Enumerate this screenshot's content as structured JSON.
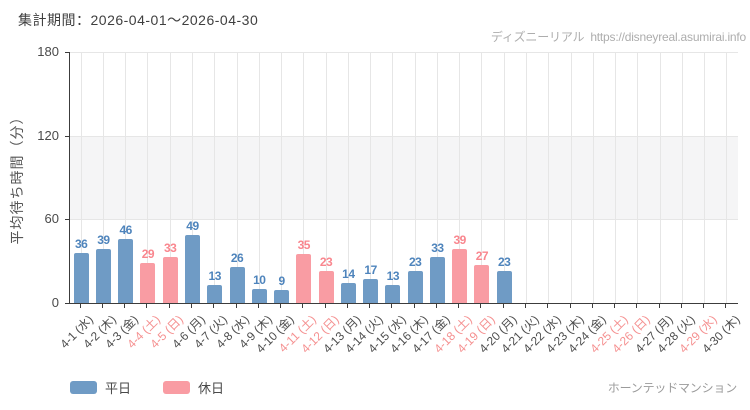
{
  "header": {
    "period_label": "集計期間：2026-04-01～2026-04-30",
    "watermark": {
      "site_name": "ディズニーリアル",
      "url": "https://disneyreal.asumirai.info"
    }
  },
  "footer": {
    "attraction_name": "ホーンテッドマンション"
  },
  "legend": {
    "items": [
      {
        "id": "weekday",
        "label": "平日",
        "color": "#6f9bc5"
      },
      {
        "id": "holiday",
        "label": "休日",
        "color": "#f99ca3"
      }
    ]
  },
  "chart_data": {
    "type": "bar",
    "title": "",
    "xlabel": "",
    "ylabel": "平均待ち時間（分）",
    "ylim": [
      0,
      180
    ],
    "yticks": [
      0,
      60,
      120,
      180
    ],
    "grid": true,
    "shaded_band": [
      60,
      120
    ],
    "legend_position": "bottom-left",
    "categories": [
      "4-1 (水)",
      "4-2 (木)",
      "4-3 (金)",
      "4-4 (土)",
      "4-5 (日)",
      "4-6 (月)",
      "4-7 (火)",
      "4-8 (水)",
      "4-9 (木)",
      "4-10 (金)",
      "4-11 (土)",
      "4-12 (日)",
      "4-13 (月)",
      "4-14 (火)",
      "4-15 (水)",
      "4-16 (木)",
      "4-17 (金)",
      "4-18 (土)",
      "4-19 (日)",
      "4-20 (月)",
      "4-21 (火)",
      "4-22 (水)",
      "4-23 (木)",
      "4-24 (金)",
      "4-25 (土)",
      "4-26 (日)",
      "4-27 (月)",
      "4-28 (火)",
      "4-29 (水)",
      "4-30 (木)"
    ],
    "day_types": [
      "weekday",
      "weekday",
      "weekday",
      "holiday",
      "holiday",
      "weekday",
      "weekday",
      "weekday",
      "weekday",
      "weekday",
      "holiday",
      "holiday",
      "weekday",
      "weekday",
      "weekday",
      "weekday",
      "weekday",
      "holiday",
      "holiday",
      "weekday",
      "weekday",
      "weekday",
      "weekday",
      "weekday",
      "holiday",
      "holiday",
      "weekday",
      "weekday",
      "holiday",
      "weekday"
    ],
    "values": [
      36,
      39,
      46,
      29,
      33,
      49,
      13,
      26,
      10,
      9,
      35,
      23,
      14,
      17,
      13,
      23,
      33,
      39,
      27,
      23,
      null,
      null,
      null,
      null,
      null,
      null,
      null,
      null,
      null,
      null
    ],
    "bar_colors": {
      "weekday": "#6f9bc5",
      "holiday": "#f99ca3"
    },
    "value_label_colors": {
      "weekday": "#4e84bc",
      "holiday": "#f9868e"
    },
    "axis_label_colors": {
      "weekday": "#4d4d4d",
      "holiday": "#f59090"
    }
  }
}
